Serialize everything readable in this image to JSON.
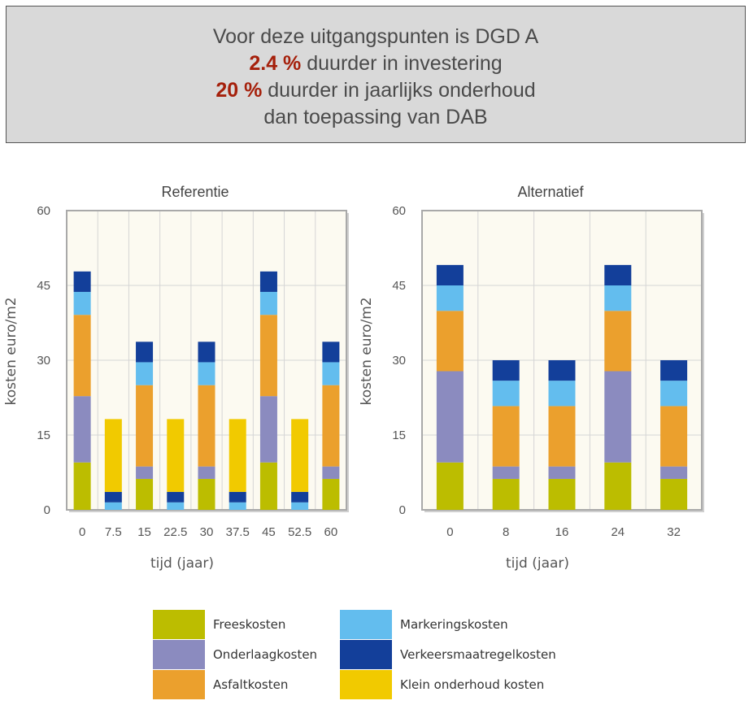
{
  "banner": {
    "line1": "Voor deze uitgangspunten is DGD A",
    "line2_value": "2.4 %",
    "line2_text": " duurder in investering",
    "line3_value": "20 %",
    "line3_text": " duurder in jaarlijks onderhoud",
    "line4": "dan toepassing van DAB"
  },
  "colors": {
    "Freeskosten": "#bcbd00",
    "Onderlaagkosten": "#8b8bbf",
    "Asfaltkosten": "#eba02d",
    "Markeringskosten": "#63bdee",
    "Verkeersmaatregelkosten": "#133f9a",
    "Klein onderhoud kosten": "#f1ca00",
    "plot_bg": "#fcfaf1",
    "grid": "#d5d5d5"
  },
  "legend": [
    {
      "name": "Freeskosten",
      "color": "#bcbd00"
    },
    {
      "name": "Onderlaagkosten",
      "color": "#8b8bbf"
    },
    {
      "name": "Asfaltkosten",
      "color": "#eba02d"
    },
    {
      "name": "Markeringskosten",
      "color": "#63bdee"
    },
    {
      "name": "Verkeersmaatregelkosten",
      "color": "#133f9a"
    },
    {
      "name": "Klein onderhoud kosten",
      "color": "#f1ca00"
    }
  ],
  "chart_data": [
    {
      "type": "bar",
      "stacked": true,
      "title": "Referentie",
      "xlabel": "tijd (jaar)",
      "ylabel": "kosten euro/m2",
      "ylim": [
        0,
        60
      ],
      "yticks": [
        0,
        15,
        30,
        45,
        60
      ],
      "grid": true,
      "categories": [
        "0",
        "7.5",
        "15",
        "22.5",
        "30",
        "37.5",
        "45",
        "52.5",
        "60"
      ],
      "series": [
        {
          "name": "Freeskosten",
          "values": [
            9.5,
            0,
            6.2,
            0,
            6.2,
            0,
            9.5,
            0,
            6.2
          ]
        },
        {
          "name": "Onderlaagkosten",
          "values": [
            13.3,
            0,
            2.5,
            0,
            2.5,
            0,
            13.3,
            0,
            2.5
          ]
        },
        {
          "name": "Asfaltkosten",
          "values": [
            16.3,
            0,
            16.3,
            0,
            16.3,
            0,
            16.3,
            0,
            16.3
          ]
        },
        {
          "name": "Markeringskosten",
          "values": [
            4.6,
            1.5,
            4.6,
            1.5,
            4.6,
            1.5,
            4.6,
            1.5,
            4.6
          ]
        },
        {
          "name": "Verkeersmaatregelkosten",
          "values": [
            4.1,
            2.1,
            4.1,
            2.1,
            4.1,
            2.1,
            4.1,
            2.1,
            4.1
          ]
        },
        {
          "name": "Klein onderhoud kosten",
          "values": [
            0,
            14.6,
            0,
            14.6,
            0,
            14.6,
            0,
            14.6,
            0
          ]
        }
      ]
    },
    {
      "type": "bar",
      "stacked": true,
      "title": "Alternatief",
      "xlabel": "tijd (jaar)",
      "ylabel": "kosten euro/m2",
      "ylim": [
        0,
        60
      ],
      "yticks": [
        0,
        15,
        30,
        45,
        60
      ],
      "grid": true,
      "categories": [
        "0",
        "8",
        "16",
        "24",
        "32"
      ],
      "series": [
        {
          "name": "Freeskosten",
          "values": [
            9.5,
            6.2,
            6.2,
            9.5,
            6.2
          ]
        },
        {
          "name": "Onderlaagkosten",
          "values": [
            18.3,
            2.5,
            2.5,
            18.3,
            2.5
          ]
        },
        {
          "name": "Asfaltkosten",
          "values": [
            12.1,
            12.1,
            12.1,
            12.1,
            12.1
          ]
        },
        {
          "name": "Markeringskosten",
          "values": [
            5.1,
            5.1,
            5.1,
            5.1,
            5.1
          ]
        },
        {
          "name": "Verkeersmaatregelkosten",
          "values": [
            4.1,
            4.1,
            4.1,
            4.1,
            4.1
          ]
        },
        {
          "name": "Klein onderhoud kosten",
          "values": [
            0,
            0,
            0,
            0,
            0
          ]
        }
      ]
    }
  ]
}
